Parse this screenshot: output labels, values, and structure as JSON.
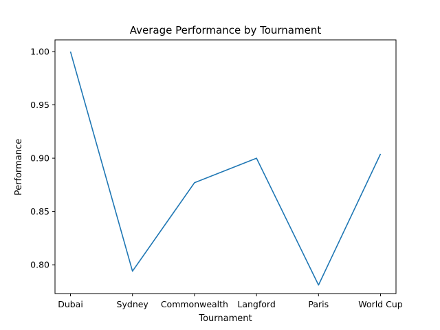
{
  "chart_data": {
    "type": "line",
    "title": "Average Performance by Tournament",
    "xlabel": "Tournament",
    "ylabel": "Performance",
    "categories": [
      "Dubai",
      "Sydney",
      "Commonwealth",
      "Langford",
      "Paris",
      "World Cup"
    ],
    "series": [
      {
        "values": [
          1.0,
          0.794,
          0.877,
          0.9,
          0.781,
          0.904
        ]
      }
    ],
    "ylim": [
      0.773,
      1.011
    ],
    "yticks": [
      "0.80",
      "0.85",
      "0.90",
      "0.95",
      "1.00"
    ],
    "grid": false,
    "colors": {
      "line": "#1f77b4"
    }
  }
}
